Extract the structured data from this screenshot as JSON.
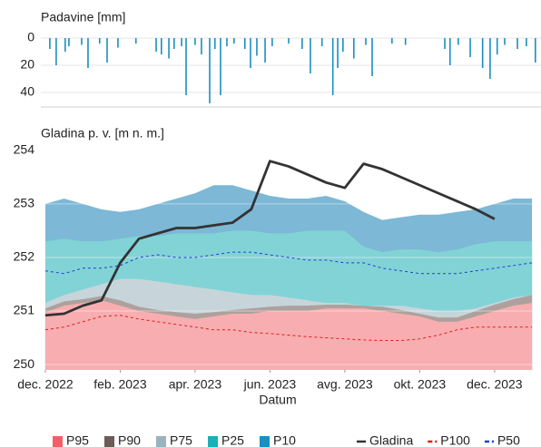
{
  "chart_data": [
    {
      "type": "bar",
      "title": "Padavine [mm]",
      "color": "#1a8fc0",
      "y_inverted": true,
      "grid": true,
      "xlim": [
        -0.12,
        13.24
      ],
      "ylim": [
        -5,
        50
      ],
      "yticks": [
        0,
        20,
        40
      ],
      "x": [
        0.12,
        0.29,
        0.53,
        0.63,
        0.97,
        1.14,
        1.45,
        1.65,
        1.94,
        2.42,
        2.96,
        3.1,
        3.3,
        3.44,
        3.64,
        3.76,
        4.0,
        4.17,
        4.39,
        4.53,
        4.68,
        4.85,
        5.04,
        5.33,
        5.48,
        5.65,
        5.87,
        6.06,
        6.5,
        6.86,
        7.08,
        7.39,
        7.68,
        7.81,
        7.95,
        8.24,
        8.56,
        8.73,
        9.26,
        9.62,
        10.67,
        10.81,
        11.03,
        11.35,
        11.68,
        11.88,
        12.07,
        12.27,
        12.61,
        12.85,
        13.09
      ],
      "values": [
        8,
        20,
        10,
        6,
        5,
        22,
        4,
        18,
        7,
        4,
        10,
        12,
        15,
        8,
        6,
        42,
        5,
        12,
        48,
        8,
        42,
        6,
        4,
        8,
        22,
        13,
        18,
        6,
        4,
        8,
        26,
        6,
        42,
        22,
        10,
        15,
        5,
        28,
        4,
        5,
        8,
        20,
        5,
        14,
        22,
        30,
        12,
        5,
        8,
        6,
        18
      ]
    },
    {
      "type": "line",
      "title": "Gladina p. v. [m n. m.]",
      "xlabel": "Datum",
      "grid": true,
      "xlim": [
        -0.12,
        13.24
      ],
      "ylim": [
        249.9,
        254.15
      ],
      "yticks": [
        250,
        251,
        252,
        253,
        254
      ],
      "xticks": [
        {
          "value": 0,
          "label": "dec. 2022"
        },
        {
          "value": 2,
          "label": "feb. 2023"
        },
        {
          "value": 4,
          "label": "apr. 2023"
        },
        {
          "value": 6,
          "label": "jun. 2023"
        },
        {
          "value": 8,
          "label": "avg. 2023"
        },
        {
          "value": 10,
          "label": "okt. 2023"
        },
        {
          "value": 12,
          "label": "dec. 2023"
        }
      ],
      "x": [
        0,
        0.5,
        1,
        1.5,
        2,
        2.5,
        3,
        3.5,
        4,
        4.5,
        5,
        5.5,
        6,
        6.5,
        7,
        7.5,
        8,
        8.5,
        9,
        9.5,
        10,
        10.5,
        11,
        11.5,
        12,
        12.5,
        13
      ],
      "series": [
        {
          "name": "P95",
          "style": "band",
          "color": "#f0606a",
          "fill": "#f8aeb0",
          "values": [
            250.97,
            251.1,
            251.15,
            251.2,
            251.1,
            251.0,
            250.95,
            250.9,
            250.85,
            250.9,
            250.95,
            250.95,
            251.0,
            251.0,
            251.0,
            251.05,
            251.05,
            251.05,
            251.0,
            250.95,
            250.9,
            250.8,
            250.8,
            250.9,
            251.0,
            251.1,
            251.15
          ]
        },
        {
          "name": "P90",
          "style": "band",
          "color": "#6b5c58",
          "fill": "#aea19d",
          "values": [
            251.05,
            251.18,
            251.22,
            251.28,
            251.2,
            251.08,
            251.02,
            250.98,
            250.95,
            250.98,
            251.02,
            251.05,
            251.08,
            251.1,
            251.1,
            251.12,
            251.12,
            251.1,
            251.08,
            251.02,
            250.95,
            250.88,
            250.88,
            251.0,
            251.12,
            251.22,
            251.3
          ]
        },
        {
          "name": "P75",
          "style": "band",
          "color": "#9ab3bf",
          "fill": "#c7d5db",
          "values": [
            251.15,
            251.3,
            251.4,
            251.5,
            251.6,
            251.6,
            251.55,
            251.5,
            251.45,
            251.4,
            251.35,
            251.3,
            251.3,
            251.25,
            251.2,
            251.15,
            251.15,
            251.1,
            251.1,
            251.1,
            251.05,
            251.0,
            251.0,
            251.05,
            251.15,
            251.25,
            251.3
          ]
        },
        {
          "name": "P25",
          "style": "band",
          "color": "#1ab0b5",
          "fill": "#82d3d6",
          "values": [
            252.3,
            252.35,
            252.3,
            252.3,
            252.35,
            252.4,
            252.4,
            252.45,
            252.45,
            252.45,
            252.5,
            252.5,
            252.45,
            252.45,
            252.5,
            252.5,
            252.5,
            252.2,
            252.1,
            252.15,
            252.15,
            252.1,
            252.15,
            252.25,
            252.3,
            252.3,
            252.3
          ]
        },
        {
          "name": "P10",
          "style": "band",
          "color": "#1a8fc0",
          "fill": "#7db8d6",
          "values": [
            253.0,
            253.1,
            253.0,
            252.9,
            252.85,
            252.9,
            253.0,
            253.1,
            253.2,
            253.35,
            253.35,
            253.25,
            253.15,
            253.1,
            253.1,
            253.15,
            253.05,
            252.85,
            252.7,
            252.75,
            252.8,
            252.8,
            252.85,
            252.9,
            253.0,
            253.1,
            253.1
          ]
        },
        {
          "name": "Gladina",
          "style": "solid",
          "color": "#333333",
          "values": [
            250.92,
            250.95,
            251.1,
            251.2,
            251.9,
            252.35,
            252.45,
            252.55,
            252.55,
            252.6,
            252.65,
            252.9,
            253.8,
            253.7,
            253.55,
            253.4,
            253.3,
            253.75,
            253.65,
            253.5,
            253.35,
            253.2,
            253.05,
            252.9,
            252.72,
            null,
            null
          ]
        },
        {
          "name": "P100",
          "style": "dashed",
          "color": "#e31a1c",
          "values": [
            250.65,
            250.7,
            250.8,
            250.9,
            250.92,
            250.85,
            250.8,
            250.75,
            250.7,
            250.65,
            250.65,
            250.6,
            250.58,
            250.55,
            250.52,
            250.5,
            250.48,
            250.46,
            250.45,
            250.45,
            250.48,
            250.55,
            250.65,
            250.7,
            250.7,
            250.7,
            250.7
          ]
        },
        {
          "name": "P50",
          "style": "dashed",
          "color": "#1f3fd6",
          "values": [
            251.75,
            251.7,
            251.8,
            251.8,
            251.85,
            252.0,
            252.05,
            252.0,
            252.0,
            252.05,
            252.1,
            252.1,
            252.05,
            252.0,
            251.95,
            251.95,
            251.9,
            251.9,
            251.8,
            251.75,
            251.7,
            251.7,
            251.7,
            251.75,
            251.8,
            251.85,
            251.9
          ]
        }
      ]
    }
  ]
}
